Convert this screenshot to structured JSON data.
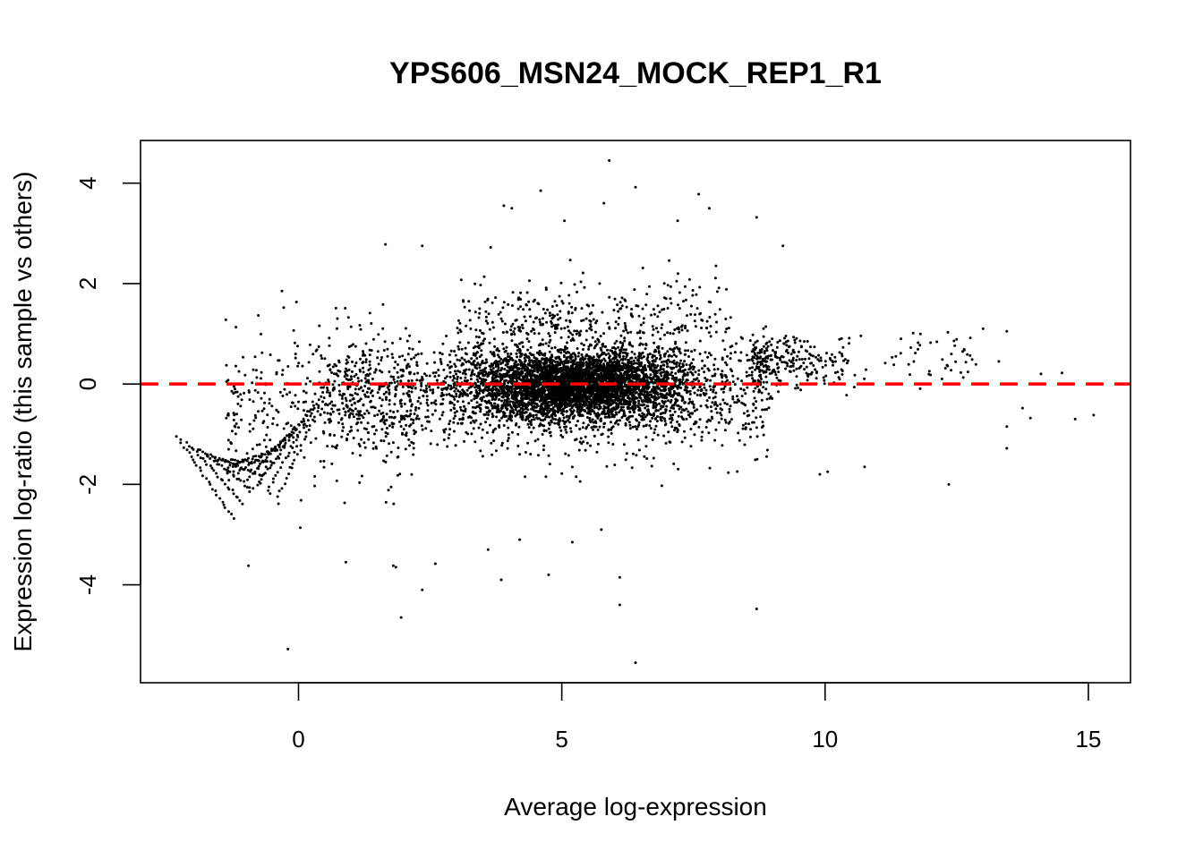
{
  "chart_data": {
    "type": "scatter",
    "title": "YPS606_MSN24_MOCK_REP1_R1",
    "xlabel": "Average log-expression",
    "ylabel": "Expression log-ratio (this sample vs others)",
    "xlim": [
      -3.0,
      15.8
    ],
    "ylim": [
      -5.95,
      4.85
    ],
    "x_ticks": [
      0,
      5,
      10,
      15
    ],
    "y_ticks": [
      -4,
      -2,
      0,
      2,
      4
    ],
    "grid": false,
    "point_color": "#000000",
    "reference_line": {
      "y": 0,
      "color": "#ff0000",
      "style": "dashed"
    },
    "point_count_approx": 7000,
    "outliers": [
      {
        "x": 5.9,
        "y": 4.45
      },
      {
        "x": 6.4,
        "y": 3.92
      },
      {
        "x": 4.6,
        "y": 3.85
      },
      {
        "x": 7.6,
        "y": 3.78
      },
      {
        "x": 5.8,
        "y": 3.6
      },
      {
        "x": 3.9,
        "y": 3.55
      },
      {
        "x": 4.05,
        "y": 3.5
      },
      {
        "x": 7.8,
        "y": 3.5
      },
      {
        "x": 8.7,
        "y": 3.32
      },
      {
        "x": 5.05,
        "y": 3.25
      },
      {
        "x": 7.2,
        "y": 3.25
      },
      {
        "x": 2.35,
        "y": 2.75
      },
      {
        "x": 1.65,
        "y": 2.78
      },
      {
        "x": 9.2,
        "y": 2.75
      },
      {
        "x": 3.65,
        "y": 2.72
      },
      {
        "x": 13.0,
        "y": 1.1
      },
      {
        "x": 13.45,
        "y": 1.05
      },
      {
        "x": 13.3,
        "y": 0.45
      },
      {
        "x": 14.1,
        "y": 0.2
      },
      {
        "x": 14.5,
        "y": 0.22
      },
      {
        "x": 14.75,
        "y": -0.7
      },
      {
        "x": 15.1,
        "y": -0.62
      },
      {
        "x": 13.9,
        "y": -0.68
      },
      {
        "x": 13.75,
        "y": -0.48
      },
      {
        "x": 13.45,
        "y": -0.85
      },
      {
        "x": 13.45,
        "y": -1.28
      },
      {
        "x": 12.35,
        "y": -2.0
      },
      {
        "x": 10.75,
        "y": -1.65
      },
      {
        "x": 9.9,
        "y": -1.8
      },
      {
        "x": 10.05,
        "y": -1.75
      },
      {
        "x": -0.2,
        "y": -5.28
      },
      {
        "x": 1.95,
        "y": -4.65
      },
      {
        "x": 2.35,
        "y": -4.1
      },
      {
        "x": 6.4,
        "y": -5.55
      },
      {
        "x": 8.7,
        "y": -4.48
      },
      {
        "x": 6.1,
        "y": -4.4
      },
      {
        "x": 6.1,
        "y": -3.85
      },
      {
        "x": 3.85,
        "y": -3.9
      },
      {
        "x": 4.75,
        "y": -3.8
      },
      {
        "x": 1.8,
        "y": -3.62
      },
      {
        "x": 1.85,
        "y": -3.65
      },
      {
        "x": 2.6,
        "y": -3.58
      },
      {
        "x": 0.9,
        "y": -3.55
      },
      {
        "x": -0.95,
        "y": -3.62
      },
      {
        "x": 3.6,
        "y": -3.3
      },
      {
        "x": 5.75,
        "y": -2.9
      },
      {
        "x": 5.2,
        "y": -3.15
      },
      {
        "x": 4.2,
        "y": -3.1
      }
    ],
    "distribution": {
      "dense_region": {
        "x": [
          3.0,
          8.0
        ],
        "y": [
          -1.0,
          1.0
        ],
        "center_x": 5.2
      },
      "low_expression_bands": {
        "x": [
          -2.3,
          0.5
        ],
        "trend": "diagonal negative bands from low x"
      },
      "high_expression_tail": {
        "x": [
          8.5,
          15.2
        ],
        "y_mean": 0.5
      }
    }
  }
}
